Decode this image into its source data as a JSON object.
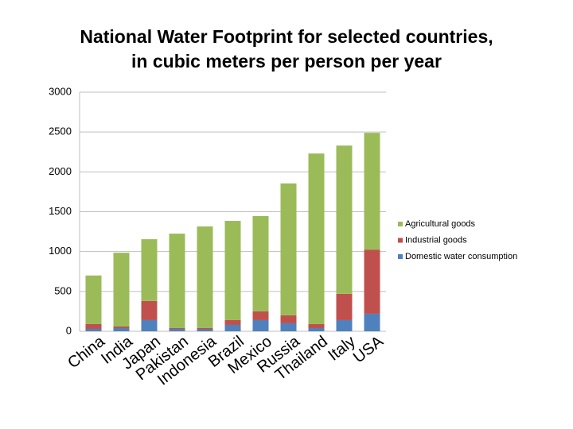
{
  "chart_data": {
    "type": "stacked_bar",
    "title": [
      "National Water Footprint for selected countries,",
      "in cubic meters per person per year"
    ],
    "categories": [
      "China",
      "India",
      "Japan",
      "Pakistan",
      "Indonesia",
      "Brazil",
      "Mexico",
      "Russia",
      "Thailand",
      "Italy",
      "USA"
    ],
    "series": [
      {
        "name": "Domestic water consumption",
        "color": "#4f81bd",
        "values": [
          30,
          40,
          140,
          30,
          25,
          80,
          140,
          100,
          40,
          140,
          220
        ]
      },
      {
        "name": "Industrial goods",
        "color": "#c0504d",
        "values": [
          60,
          20,
          240,
          10,
          15,
          60,
          110,
          100,
          50,
          330,
          805
        ]
      },
      {
        "name": "Agricultural goods",
        "color": "#9bbb59",
        "values": [
          610,
          925,
          775,
          1185,
          1275,
          1245,
          1195,
          1655,
          2140,
          1860,
          1465
        ]
      }
    ],
    "ylim": [
      0,
      3000
    ],
    "yticks": [
      0,
      500,
      1000,
      1500,
      2000,
      2500,
      3000
    ],
    "grid": true,
    "legend": "right"
  }
}
